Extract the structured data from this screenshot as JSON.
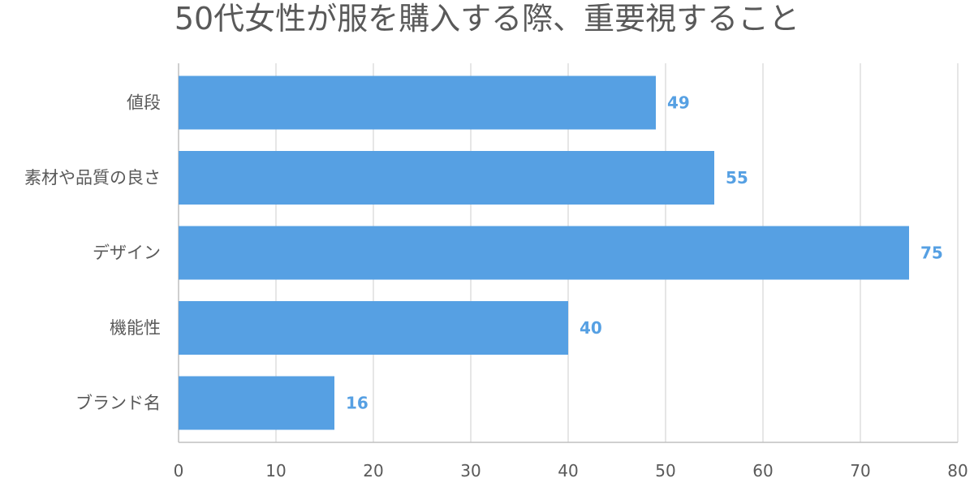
{
  "chart_data": {
    "type": "bar",
    "orientation": "horizontal",
    "title": "50代女性が服を購入する際、重要視すること",
    "categories": [
      "値段",
      "素材や品質の良さ",
      "デザイン",
      "機能性",
      "ブランド名"
    ],
    "values": [
      49,
      55,
      75,
      40,
      16
    ],
    "xlim": [
      0,
      80
    ],
    "xticks": [
      0,
      10,
      20,
      30,
      40,
      50,
      60,
      70,
      80
    ],
    "grid": true,
    "legend": "none",
    "data_labels": true
  },
  "colors": {
    "bar": "#56a0e3",
    "data_label": "#56a0e3",
    "grid": "#d9d9d9",
    "axis": "#bfbfbf",
    "text": "#595959"
  }
}
